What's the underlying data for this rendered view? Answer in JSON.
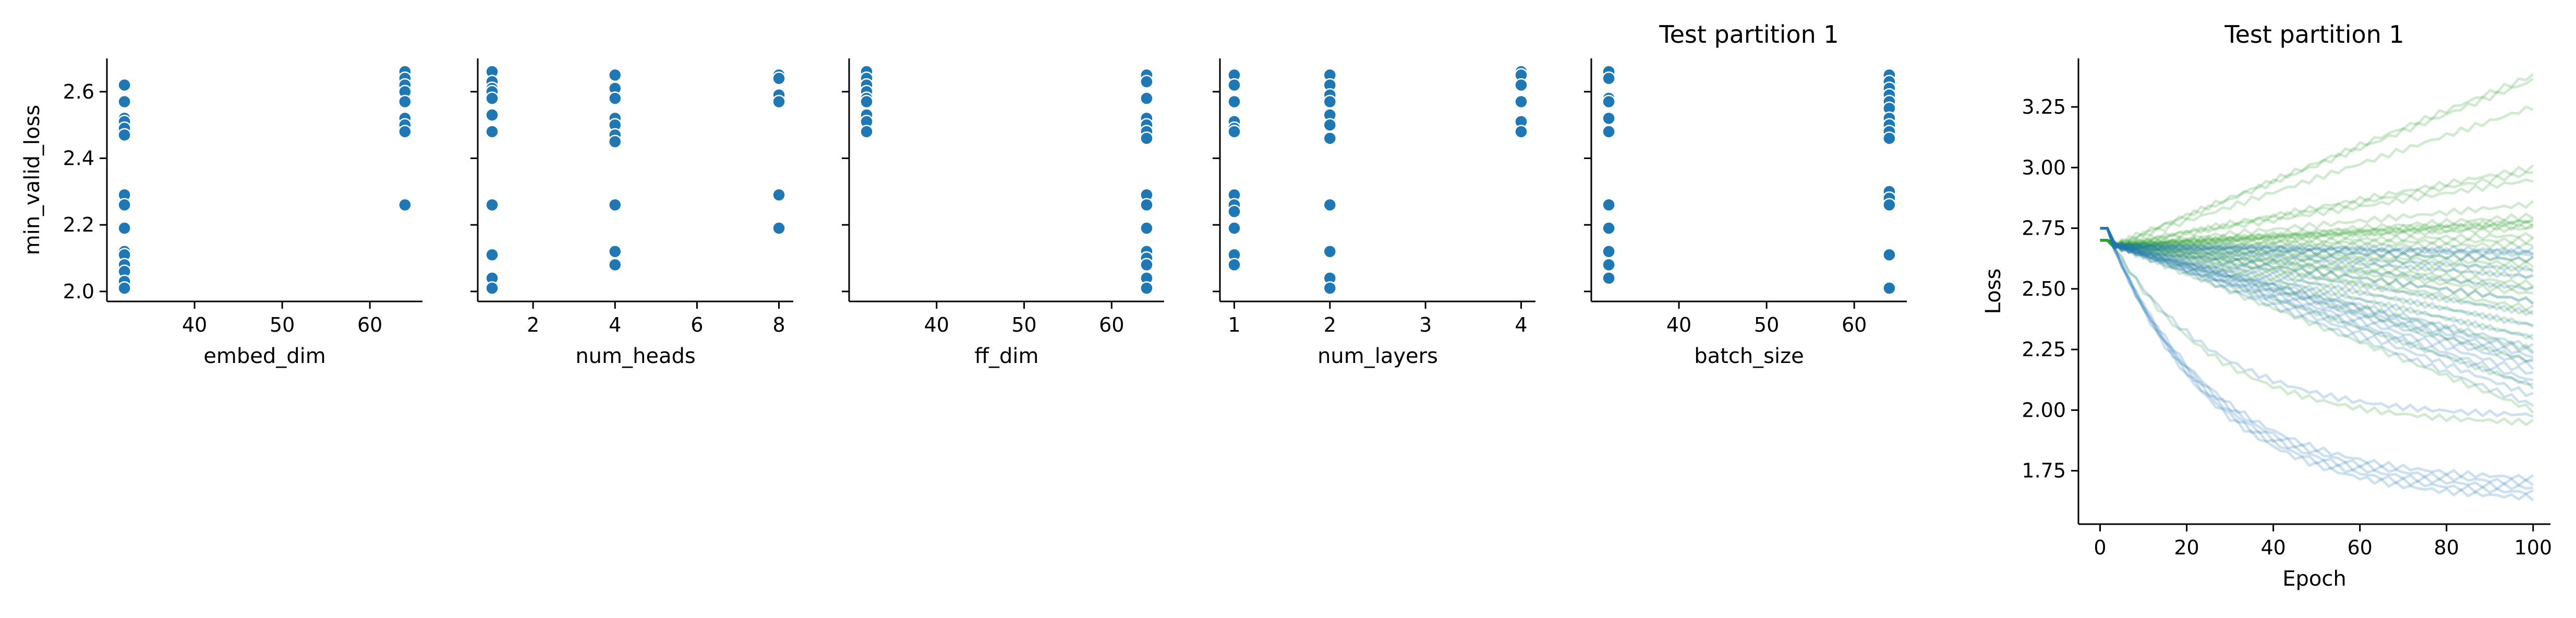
{
  "figure": {
    "background": "#ffffff"
  },
  "chart_data": [
    {
      "type": "scatter",
      "xlabel": "embed_dim",
      "ylabel": "min_valid_loss",
      "xlim": [
        30,
        66
      ],
      "ylim": [
        1.97,
        2.7
      ],
      "xticks": [
        "40",
        "50",
        "60"
      ],
      "yticks": [
        "2.0",
        "2.2",
        "2.4",
        "2.6"
      ],
      "color": "#1f77b4",
      "points": [
        {
          "x": 32,
          "y": 2.62
        },
        {
          "x": 32,
          "y": 2.57
        },
        {
          "x": 32,
          "y": 2.52
        },
        {
          "x": 32,
          "y": 2.51
        },
        {
          "x": 32,
          "y": 2.49
        },
        {
          "x": 32,
          "y": 2.47
        },
        {
          "x": 32,
          "y": 2.29
        },
        {
          "x": 32,
          "y": 2.26
        },
        {
          "x": 32,
          "y": 2.19
        },
        {
          "x": 32,
          "y": 2.12
        },
        {
          "x": 32,
          "y": 2.11
        },
        {
          "x": 32,
          "y": 2.08
        },
        {
          "x": 32,
          "y": 2.06
        },
        {
          "x": 32,
          "y": 2.03
        },
        {
          "x": 32,
          "y": 2.01
        },
        {
          "x": 64,
          "y": 2.66
        },
        {
          "x": 64,
          "y": 2.64
        },
        {
          "x": 64,
          "y": 2.62
        },
        {
          "x": 64,
          "y": 2.6
        },
        {
          "x": 64,
          "y": 2.57
        },
        {
          "x": 64,
          "y": 2.52
        },
        {
          "x": 64,
          "y": 2.5
        },
        {
          "x": 64,
          "y": 2.48
        },
        {
          "x": 64,
          "y": 2.26
        }
      ]
    },
    {
      "type": "scatter",
      "xlabel": "num_heads",
      "ylabel": "",
      "xlim": [
        0.65,
        8.35
      ],
      "ylim": [
        1.97,
        2.7
      ],
      "xticks": [
        "2",
        "4",
        "6",
        "8"
      ],
      "color": "#1f77b4",
      "points": [
        {
          "x": 1,
          "y": 2.66
        },
        {
          "x": 1,
          "y": 2.63
        },
        {
          "x": 1,
          "y": 2.61
        },
        {
          "x": 1,
          "y": 2.6
        },
        {
          "x": 1,
          "y": 2.58
        },
        {
          "x": 1,
          "y": 2.53
        },
        {
          "x": 1,
          "y": 2.48
        },
        {
          "x": 1,
          "y": 2.26
        },
        {
          "x": 1,
          "y": 2.11
        },
        {
          "x": 1,
          "y": 2.04
        },
        {
          "x": 1,
          "y": 2.01
        },
        {
          "x": 4,
          "y": 2.65
        },
        {
          "x": 4,
          "y": 2.61
        },
        {
          "x": 4,
          "y": 2.58
        },
        {
          "x": 4,
          "y": 2.52
        },
        {
          "x": 4,
          "y": 2.5
        },
        {
          "x": 4,
          "y": 2.47
        },
        {
          "x": 4,
          "y": 2.45
        },
        {
          "x": 4,
          "y": 2.26
        },
        {
          "x": 4,
          "y": 2.12
        },
        {
          "x": 4,
          "y": 2.08
        },
        {
          "x": 8,
          "y": 2.65
        },
        {
          "x": 8,
          "y": 2.64
        },
        {
          "x": 8,
          "y": 2.59
        },
        {
          "x": 8,
          "y": 2.57
        },
        {
          "x": 8,
          "y": 2.29
        },
        {
          "x": 8,
          "y": 2.19
        }
      ]
    },
    {
      "type": "scatter",
      "xlabel": "ff_dim",
      "ylabel": "",
      "xlim": [
        30,
        66
      ],
      "ylim": [
        1.97,
        2.7
      ],
      "xticks": [
        "40",
        "50",
        "60"
      ],
      "color": "#1f77b4",
      "points": [
        {
          "x": 32,
          "y": 2.66
        },
        {
          "x": 32,
          "y": 2.64
        },
        {
          "x": 32,
          "y": 2.62
        },
        {
          "x": 32,
          "y": 2.6
        },
        {
          "x": 32,
          "y": 2.58
        },
        {
          "x": 32,
          "y": 2.57
        },
        {
          "x": 32,
          "y": 2.53
        },
        {
          "x": 32,
          "y": 2.51
        },
        {
          "x": 32,
          "y": 2.48
        },
        {
          "x": 64,
          "y": 2.65
        },
        {
          "x": 64,
          "y": 2.63
        },
        {
          "x": 64,
          "y": 2.58
        },
        {
          "x": 64,
          "y": 2.52
        },
        {
          "x": 64,
          "y": 2.5
        },
        {
          "x": 64,
          "y": 2.48
        },
        {
          "x": 64,
          "y": 2.46
        },
        {
          "x": 64,
          "y": 2.29
        },
        {
          "x": 64,
          "y": 2.26
        },
        {
          "x": 64,
          "y": 2.19
        },
        {
          "x": 64,
          "y": 2.12
        },
        {
          "x": 64,
          "y": 2.1
        },
        {
          "x": 64,
          "y": 2.08
        },
        {
          "x": 64,
          "y": 2.04
        },
        {
          "x": 64,
          "y": 2.01
        }
      ]
    },
    {
      "type": "scatter",
      "xlabel": "num_layers",
      "ylabel": "",
      "xlim": [
        0.85,
        4.15
      ],
      "ylim": [
        1.97,
        2.7
      ],
      "xticks": [
        "1",
        "2",
        "3",
        "4"
      ],
      "color": "#1f77b4",
      "points": [
        {
          "x": 1,
          "y": 2.65
        },
        {
          "x": 1,
          "y": 2.62
        },
        {
          "x": 1,
          "y": 2.57
        },
        {
          "x": 1,
          "y": 2.51
        },
        {
          "x": 1,
          "y": 2.49
        },
        {
          "x": 1,
          "y": 2.48
        },
        {
          "x": 1,
          "y": 2.29
        },
        {
          "x": 1,
          "y": 2.26
        },
        {
          "x": 1,
          "y": 2.24
        },
        {
          "x": 1,
          "y": 2.19
        },
        {
          "x": 1,
          "y": 2.11
        },
        {
          "x": 1,
          "y": 2.08
        },
        {
          "x": 2,
          "y": 2.65
        },
        {
          "x": 2,
          "y": 2.62
        },
        {
          "x": 2,
          "y": 2.59
        },
        {
          "x": 2,
          "y": 2.57
        },
        {
          "x": 2,
          "y": 2.53
        },
        {
          "x": 2,
          "y": 2.5
        },
        {
          "x": 2,
          "y": 2.46
        },
        {
          "x": 2,
          "y": 2.26
        },
        {
          "x": 2,
          "y": 2.12
        },
        {
          "x": 2,
          "y": 2.04
        },
        {
          "x": 2,
          "y": 2.01
        },
        {
          "x": 4,
          "y": 2.66
        },
        {
          "x": 4,
          "y": 2.65
        },
        {
          "x": 4,
          "y": 2.62
        },
        {
          "x": 4,
          "y": 2.57
        },
        {
          "x": 4,
          "y": 2.51
        },
        {
          "x": 4,
          "y": 2.48
        }
      ]
    },
    {
      "type": "scatter",
      "title": "Test partition 1",
      "xlabel": "batch_size",
      "ylabel": "",
      "xlim": [
        30,
        66
      ],
      "ylim": [
        1.97,
        2.7
      ],
      "xticks": [
        "40",
        "50",
        "60"
      ],
      "color": "#1f77b4",
      "points": [
        {
          "x": 32,
          "y": 2.66
        },
        {
          "x": 32,
          "y": 2.64
        },
        {
          "x": 32,
          "y": 2.58
        },
        {
          "x": 32,
          "y": 2.57
        },
        {
          "x": 32,
          "y": 2.52
        },
        {
          "x": 32,
          "y": 2.48
        },
        {
          "x": 32,
          "y": 2.26
        },
        {
          "x": 32,
          "y": 2.19
        },
        {
          "x": 32,
          "y": 2.12
        },
        {
          "x": 32,
          "y": 2.08
        },
        {
          "x": 32,
          "y": 2.04
        },
        {
          "x": 64,
          "y": 2.65
        },
        {
          "x": 64,
          "y": 2.63
        },
        {
          "x": 64,
          "y": 2.61
        },
        {
          "x": 64,
          "y": 2.59
        },
        {
          "x": 64,
          "y": 2.57
        },
        {
          "x": 64,
          "y": 2.55
        },
        {
          "x": 64,
          "y": 2.52
        },
        {
          "x": 64,
          "y": 2.5
        },
        {
          "x": 64,
          "y": 2.48
        },
        {
          "x": 64,
          "y": 2.46
        },
        {
          "x": 64,
          "y": 2.3
        },
        {
          "x": 64,
          "y": 2.28
        },
        {
          "x": 64,
          "y": 2.26
        },
        {
          "x": 64,
          "y": 2.11
        },
        {
          "x": 64,
          "y": 2.01
        }
      ]
    },
    {
      "type": "line",
      "title": "Test partition 1",
      "xlabel": "Epoch",
      "ylabel": "Loss",
      "xlim": [
        -5,
        104
      ],
      "ylim": [
        1.53,
        3.45
      ],
      "xticks": [
        0,
        20,
        40,
        60,
        80,
        100
      ],
      "yticks": [
        "1.75",
        "2.00",
        "2.25",
        "2.50",
        "2.75",
        "3.00",
        "3.25"
      ],
      "x_range": [
        0,
        100
      ],
      "groups": [
        {
          "color": "#2ca02c",
          "start": 2.7,
          "finals": [
            3.38,
            3.36,
            3.25,
            3.0,
            2.98,
            2.95,
            2.85,
            2.8,
            2.78,
            2.78,
            2.77,
            2.76,
            2.75,
            2.72,
            2.7,
            2.68,
            2.65,
            2.62,
            2.6,
            2.58,
            2.55,
            2.52,
            2.5,
            2.48,
            2.45,
            2.42,
            2.4,
            2.35,
            2.3,
            2.25,
            2.2,
            2.1,
            2.0,
            1.95
          ]
        },
        {
          "color": "#1f77b4",
          "start": 2.75,
          "finals": [
            2.66,
            2.65,
            2.64,
            2.62,
            2.58,
            2.55,
            2.5,
            2.45,
            2.4,
            2.35,
            2.3,
            2.26,
            2.24,
            2.22,
            2.2,
            2.18,
            2.15,
            2.12,
            2.1,
            2.06,
            2.02,
            1.98,
            1.72,
            1.7,
            1.68,
            1.66,
            1.64
          ]
        }
      ]
    }
  ]
}
